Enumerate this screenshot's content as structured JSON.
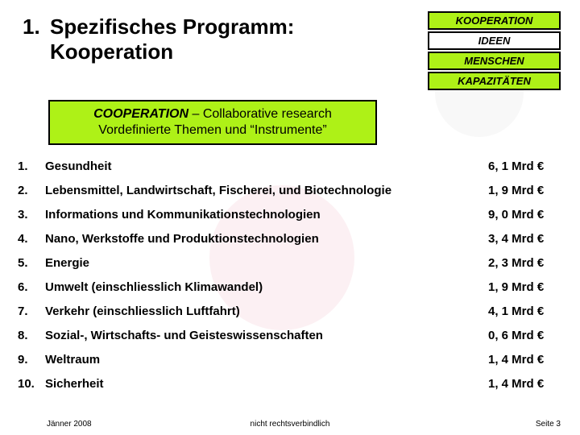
{
  "colors": {
    "lime": "#aef117",
    "ideen_bg": "#ffffff",
    "text": "#000000",
    "background": "#ffffff"
  },
  "title": {
    "number": "1.",
    "line1": "Spezifisches Programm:",
    "line2": "Kooperation"
  },
  "stack": {
    "items": [
      {
        "label": "KOOPERATION",
        "bg": "#aef117"
      },
      {
        "label": "IDEEN",
        "bg": "#ffffff"
      },
      {
        "label": "MENSCHEN",
        "bg": "#aef117"
      },
      {
        "label": "KAPAZITÄTEN",
        "bg": "#aef117"
      }
    ]
  },
  "subtitle": {
    "bg": "#aef117",
    "line1_strong": "COOPERATION",
    "line1_rest": " – Collaborative research",
    "line2": "Vordefinierte Themen und “Instrumente”"
  },
  "items": [
    {
      "n": "1.",
      "t": "Gesundheit",
      "v": "6, 1 Mrd €"
    },
    {
      "n": "2.",
      "t": "Lebensmittel, Landwirtschaft, Fischerei, und Biotechnologie",
      "v": "1, 9 Mrd €"
    },
    {
      "n": "3.",
      "t": "Informations und Kommunikationstechnologien",
      "v": "9, 0 Mrd €"
    },
    {
      "n": "4.",
      "t": "Nano, Werkstoffe und Produktionstechnologien",
      "v": "3, 4 Mrd €"
    },
    {
      "n": "5.",
      "t": "Energie",
      "v": "2, 3 Mrd €"
    },
    {
      "n": "6.",
      "t": "Umwelt (einschliesslich Klimawandel)",
      "v": "1, 9 Mrd  €"
    },
    {
      "n": "7.",
      "t": "Verkehr (einschliesslich Luftfahrt)",
      "v": "4, 1 Mrd €"
    },
    {
      "n": "8.",
      "t": "Sozial-, Wirtschafts- und Geisteswissenschaften",
      "v": "0, 6 Mrd €"
    },
    {
      "n": "9.",
      "t": "Weltraum",
      "v": "1, 4 Mrd €"
    },
    {
      "n": "10.",
      "t": "Sicherheit",
      "v": "1, 4 Mrd €"
    }
  ],
  "footer": {
    "date": "Jänner 2008",
    "mid": "nicht rechtsverbindlich",
    "page": "Seite 3"
  },
  "typography": {
    "title_fontsize": 26,
    "list_fontsize": 15,
    "stack_fontsize": 13,
    "subtitle_fontsize": 16,
    "footer_fontsize": 10
  }
}
